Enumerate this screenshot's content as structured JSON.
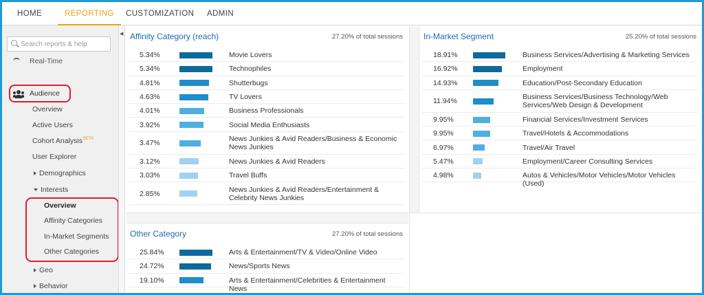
{
  "nav": {
    "tabs": [
      {
        "label": "HOME",
        "active": false
      },
      {
        "label": "REPORTING",
        "active": true
      },
      {
        "label": "CUSTOMIZATION",
        "active": false
      },
      {
        "label": "ADMIN",
        "active": false
      }
    ],
    "accent_color": "#e8a317"
  },
  "sidebar": {
    "search_placeholder": "Search reports & help",
    "realtime_label": "Real-Time",
    "audience_label": "Audience",
    "items": [
      "Overview",
      "Active Users",
      "Cohort Analysis",
      "User Explorer",
      "Demographics",
      "Interests"
    ],
    "beta_badge": "BETA",
    "interests_sub": [
      "Overview",
      "Affinity Categories",
      "In-Market Segments",
      "Other Categories"
    ],
    "after": [
      "Geo",
      "Behavior"
    ],
    "highlight_color": "#d71f35"
  },
  "panels": {
    "affinity": {
      "title": "Affinity Category (reach)",
      "sessions": "27.20% of total sessions",
      "rows": [
        {
          "pct": "5.34%",
          "label": "Movie Lovers",
          "value": 5.34
        },
        {
          "pct": "5.34%",
          "label": "Technophiles",
          "value": 5.34
        },
        {
          "pct": "4.81%",
          "label": "Shutterbugs",
          "value": 4.81
        },
        {
          "pct": "4.63%",
          "label": "TV Lovers",
          "value": 4.63
        },
        {
          "pct": "4.01%",
          "label": "Business Professionals",
          "value": 4.01
        },
        {
          "pct": "3.92%",
          "label": "Social Media Enthusiasts",
          "value": 3.92
        },
        {
          "pct": "3.47%",
          "label": "News Junkies & Avid Readers/Business & Economic News Junkies",
          "value": 3.47
        },
        {
          "pct": "3.12%",
          "label": "News Junkies & Avid Readers",
          "value": 3.12
        },
        {
          "pct": "3.03%",
          "label": "Travel Buffs",
          "value": 3.03
        },
        {
          "pct": "2.85%",
          "label": "News Junkies & Avid Readers/Entertainment & Celebrity News Junkies",
          "value": 2.85
        }
      ]
    },
    "inmarket": {
      "title": "In-Market Segment",
      "sessions": "25.20% of total sessions",
      "rows": [
        {
          "pct": "18.91%",
          "label": "Business Services/Advertising & Marketing Services",
          "value": 18.91
        },
        {
          "pct": "16.92%",
          "label": "Employment",
          "value": 16.92
        },
        {
          "pct": "14.93%",
          "label": "Education/Post-Secondary Education",
          "value": 14.93
        },
        {
          "pct": "11.94%",
          "label": "Business Services/Business Technology/Web Services/Web Design & Development",
          "value": 11.94
        },
        {
          "pct": "9.95%",
          "label": "Financial Services/Investment Services",
          "value": 9.95
        },
        {
          "pct": "9.95%",
          "label": "Travel/Hotels & Accommodations",
          "value": 9.95
        },
        {
          "pct": "6.97%",
          "label": "Travel/Air Travel",
          "value": 6.97
        },
        {
          "pct": "5.47%",
          "label": "Employment/Career Consulting Services",
          "value": 5.47
        },
        {
          "pct": "4.98%",
          "label": "Autos & Vehicles/Motor Vehicles/Motor Vehicles (Used)",
          "value": 4.98
        }
      ]
    },
    "other": {
      "title": "Other Category",
      "sessions": "27.20% of total sessions",
      "rows": [
        {
          "pct": "25.84%",
          "label": "Arts & Entertainment/TV & Video/Online Video",
          "value": 25.84
        },
        {
          "pct": "24.72%",
          "label": "News/Sports News",
          "value": 24.72
        },
        {
          "pct": "19.10%",
          "label": "Arts & Entertainment/Celebrities & Entertainment News",
          "value": 19.1
        }
      ]
    }
  },
  "bar_colors": [
    "#0e6a9a",
    "#1f8dc8",
    "#4fb0df",
    "#9fd2ef"
  ]
}
